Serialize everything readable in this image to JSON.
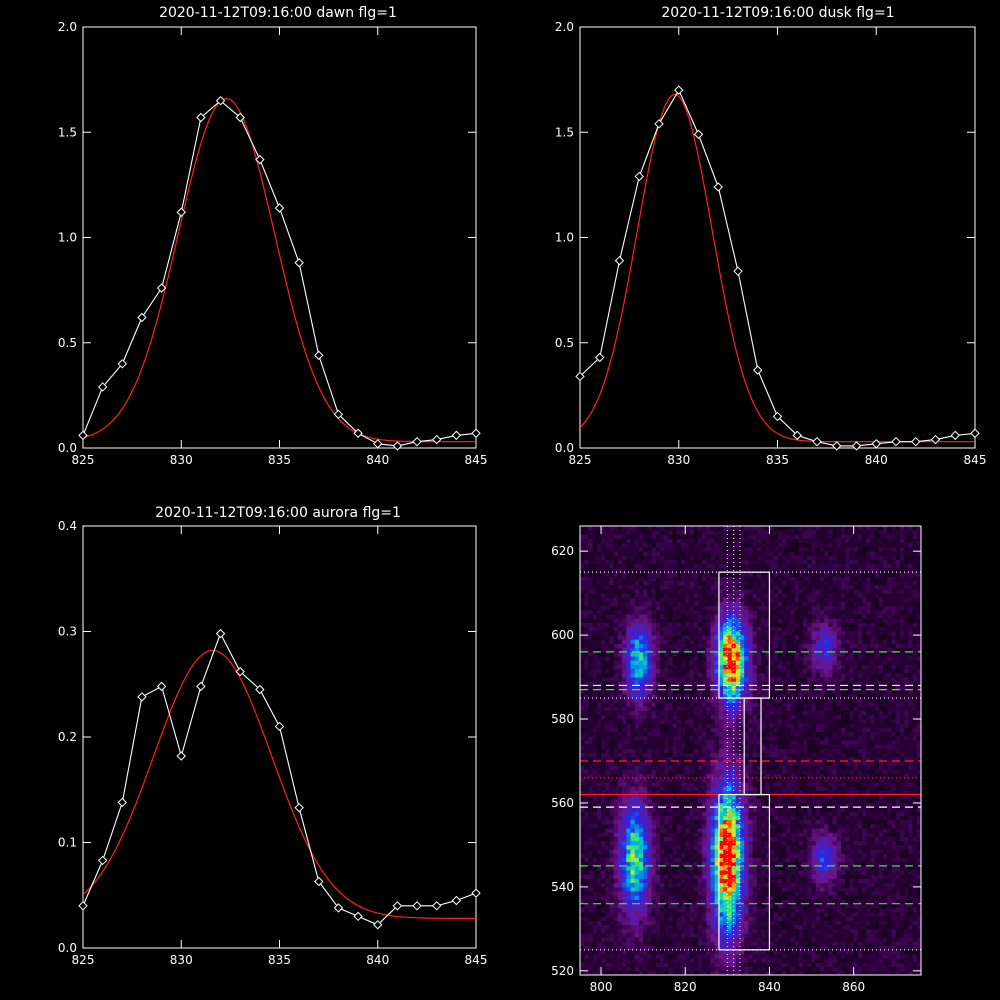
{
  "chart_data": [
    {
      "type": "line",
      "title": "2020-11-12T09:16:00 dawn flg=1",
      "xlim": [
        825,
        845
      ],
      "ylim": [
        0.0,
        2.0
      ],
      "xticks": [
        825,
        830,
        835,
        840,
        845
      ],
      "yticks": [
        0.0,
        0.5,
        1.0,
        1.5,
        2.0
      ],
      "xtick_labels": [
        "825",
        "830",
        "835",
        "840",
        "845"
      ],
      "ytick_labels": [
        "0.0",
        "0.5",
        "1.0",
        "1.5",
        "2.0"
      ],
      "colors": {
        "data": "#ffffff",
        "fit": "#ff2020"
      },
      "series": [
        {
          "style": "white line with diamond markers",
          "x": [
            825,
            826,
            827,
            828,
            829,
            830,
            831,
            832,
            833,
            834,
            835,
            836,
            837,
            838,
            839,
            840,
            841,
            842,
            843,
            844,
            845
          ],
          "y": [
            0.06,
            0.29,
            0.4,
            0.62,
            0.76,
            1.12,
            1.57,
            1.65,
            1.57,
            1.37,
            1.14,
            0.88,
            0.44,
            0.16,
            0.07,
            0.02,
            0.01,
            0.03,
            0.04,
            0.06,
            0.07
          ]
        },
        {
          "style": "red gaussian fit",
          "fit": {
            "amplitude": 1.63,
            "center": 832.3,
            "sigma": 2.45,
            "offset": 0.03
          }
        }
      ]
    },
    {
      "type": "line",
      "title": "2020-11-12T09:16:00 dusk flg=1",
      "xlim": [
        825,
        845
      ],
      "ylim": [
        0.0,
        2.0
      ],
      "xticks": [
        825,
        830,
        835,
        840,
        845
      ],
      "yticks": [
        0.0,
        0.5,
        1.0,
        1.5,
        2.0
      ],
      "xtick_labels": [
        "825",
        "830",
        "835",
        "840",
        "845"
      ],
      "ytick_labels": [
        "0.0",
        "0.5",
        "1.0",
        "1.5",
        "2.0"
      ],
      "colors": {
        "data": "#ffffff",
        "fit": "#ff2020"
      },
      "series": [
        {
          "style": "white line with diamond markers",
          "x": [
            825,
            826,
            827,
            828,
            829,
            830,
            831,
            832,
            833,
            834,
            835,
            836,
            837,
            838,
            839,
            840,
            841,
            842,
            843,
            844,
            845
          ],
          "y": [
            0.34,
            0.43,
            0.89,
            1.29,
            1.54,
            1.7,
            1.49,
            1.24,
            0.84,
            0.37,
            0.15,
            0.06,
            0.03,
            0.01,
            0.01,
            0.02,
            0.03,
            0.03,
            0.04,
            0.06,
            0.07
          ]
        },
        {
          "style": "red gaussian fit",
          "fit": {
            "amplitude": 1.65,
            "center": 829.8,
            "sigma": 1.9,
            "offset": 0.03
          }
        }
      ]
    },
    {
      "type": "line",
      "title": "2020-11-12T09:16:00 aurora flg=1",
      "xlim": [
        825,
        845
      ],
      "ylim": [
        0.0,
        0.4
      ],
      "xticks": [
        825,
        830,
        835,
        840,
        845
      ],
      "yticks": [
        0.0,
        0.1,
        0.2,
        0.3,
        0.4
      ],
      "xtick_labels": [
        "825",
        "830",
        "835",
        "840",
        "845"
      ],
      "ytick_labels": [
        "0.0",
        "0.1",
        "0.2",
        "0.3",
        "0.4"
      ],
      "colors": {
        "data": "#ffffff",
        "fit": "#ff2020"
      },
      "series": [
        {
          "style": "white line with diamond markers",
          "x": [
            825,
            826,
            827,
            828,
            829,
            830,
            831,
            832,
            833,
            834,
            835,
            836,
            837,
            838,
            839,
            840,
            841,
            842,
            843,
            844,
            845
          ],
          "y": [
            0.04,
            0.083,
            0.138,
            0.238,
            0.248,
            0.182,
            0.248,
            0.298,
            0.262,
            0.245,
            0.21,
            0.133,
            0.063,
            0.038,
            0.03,
            0.022,
            0.04,
            0.04,
            0.04,
            0.045,
            0.052
          ]
        },
        {
          "style": "red gaussian fit",
          "fit": {
            "amplitude": 0.254,
            "center": 831.6,
            "sigma": 3.0,
            "offset": 0.028
          }
        }
      ]
    },
    {
      "type": "heatmap",
      "xlim": [
        795,
        876
      ],
      "ylim": [
        519,
        626
      ],
      "xticks": [
        800,
        820,
        840,
        860
      ],
      "yticks": [
        520,
        540,
        560,
        580,
        600,
        620
      ],
      "xtick_labels": [
        "800",
        "820",
        "840",
        "860"
      ],
      "ytick_labels": [
        "520",
        "540",
        "560",
        "580",
        "600",
        "620"
      ],
      "colormap": "black-purple-blue-cyan-green-yellow-red",
      "blobs": [
        {
          "x": 809,
          "y": 594,
          "sx": 2.2,
          "sy": 6,
          "amp": 0.55
        },
        {
          "x": 831,
          "y": 594,
          "sx": 2.5,
          "sy": 7,
          "amp": 0.95
        },
        {
          "x": 853,
          "y": 597,
          "sx": 2.2,
          "sy": 4,
          "amp": 0.3
        },
        {
          "x": 808,
          "y": 547,
          "sx": 2.5,
          "sy": 9,
          "amp": 0.62
        },
        {
          "x": 830,
          "y": 547,
          "sx": 2.6,
          "sy": 12,
          "amp": 1.0
        },
        {
          "x": 853,
          "y": 547,
          "sx": 2.2,
          "sy": 4,
          "amp": 0.35
        }
      ],
      "overlays": {
        "white_boxes": [
          {
            "x": [
              828,
              840
            ],
            "y": [
              585,
              615
            ]
          },
          {
            "x": [
              828,
              840
            ],
            "y": [
              525,
              562
            ]
          },
          {
            "x": [
              834,
              838
            ],
            "y": [
              562,
              585
            ]
          }
        ],
        "dotted_white_horizontal": [
          615,
          585,
          525
        ],
        "dotted_white_vertical": [
          830,
          831.5,
          833
        ],
        "dashed_white_horizontal": [
          588,
          559
        ],
        "dashed_green_horizontal": [
          596,
          587,
          545,
          536
        ],
        "dashed_red_horizontal": [
          570
        ],
        "dotted_red_horizontal": [
          566
        ],
        "solid_red_horizontal": [
          562
        ]
      },
      "colors": {
        "box": "#ffffff",
        "green": "#33ee44",
        "red": "#ff2020",
        "white": "#ffffff"
      }
    }
  ]
}
